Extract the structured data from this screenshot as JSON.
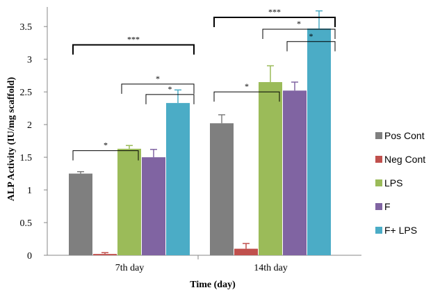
{
  "chart_data": {
    "type": "bar",
    "categories": [
      "7th day",
      "14th day"
    ],
    "series": [
      {
        "name": "Pos Cont",
        "color": "#7f7f7f",
        "values": [
          1.25,
          2.02
        ],
        "errors": [
          0.03,
          0.13
        ]
      },
      {
        "name": "Neg Cont",
        "color": "#c0504d",
        "values": [
          0.02,
          0.1
        ],
        "errors": [
          0.02,
          0.08
        ]
      },
      {
        "name": "LPS",
        "color": "#9bbb59",
        "values": [
          1.63,
          2.65
        ],
        "errors": [
          0.05,
          0.25
        ]
      },
      {
        "name": "F",
        "color": "#8064a2",
        "values": [
          1.5,
          2.52
        ],
        "errors": [
          0.12,
          0.13
        ]
      },
      {
        "name": "F+ LPS",
        "color": "#4bacc6",
        "values": [
          2.33,
          3.47
        ],
        "errors": [
          0.2,
          0.27
        ]
      }
    ],
    "xlabel": "Time (day)",
    "ylabel": "ALP Activity (IU/mg scaffold)",
    "ylim": [
      0,
      3.8
    ],
    "yticks": [
      "0",
      "0.5",
      "1",
      "1.5",
      "2",
      "2.5",
      "3",
      "3.5"
    ],
    "legend_position": "right",
    "grid": false,
    "significance": [
      {
        "category": "7th day",
        "from": "Pos Cont",
        "to": "F+ LPS",
        "label": "***"
      },
      {
        "category": "7th day",
        "from": "Pos Cont",
        "to": "LPS",
        "label": "*"
      },
      {
        "category": "7th day",
        "from": "LPS",
        "to": "F+ LPS",
        "label": "*"
      },
      {
        "category": "7th day",
        "from": "F",
        "to": "F+ LPS",
        "label": "*"
      },
      {
        "category": "14th day",
        "from": "Pos Cont",
        "to": "F+ LPS",
        "label": "***"
      },
      {
        "category": "14th day",
        "from": "Pos Cont",
        "to": "LPS",
        "label": "*"
      },
      {
        "category": "14th day",
        "from": "LPS",
        "to": "F+ LPS",
        "label": "*"
      },
      {
        "category": "14th day",
        "from": "F",
        "to": "F+ LPS",
        "label": "*"
      }
    ]
  }
}
